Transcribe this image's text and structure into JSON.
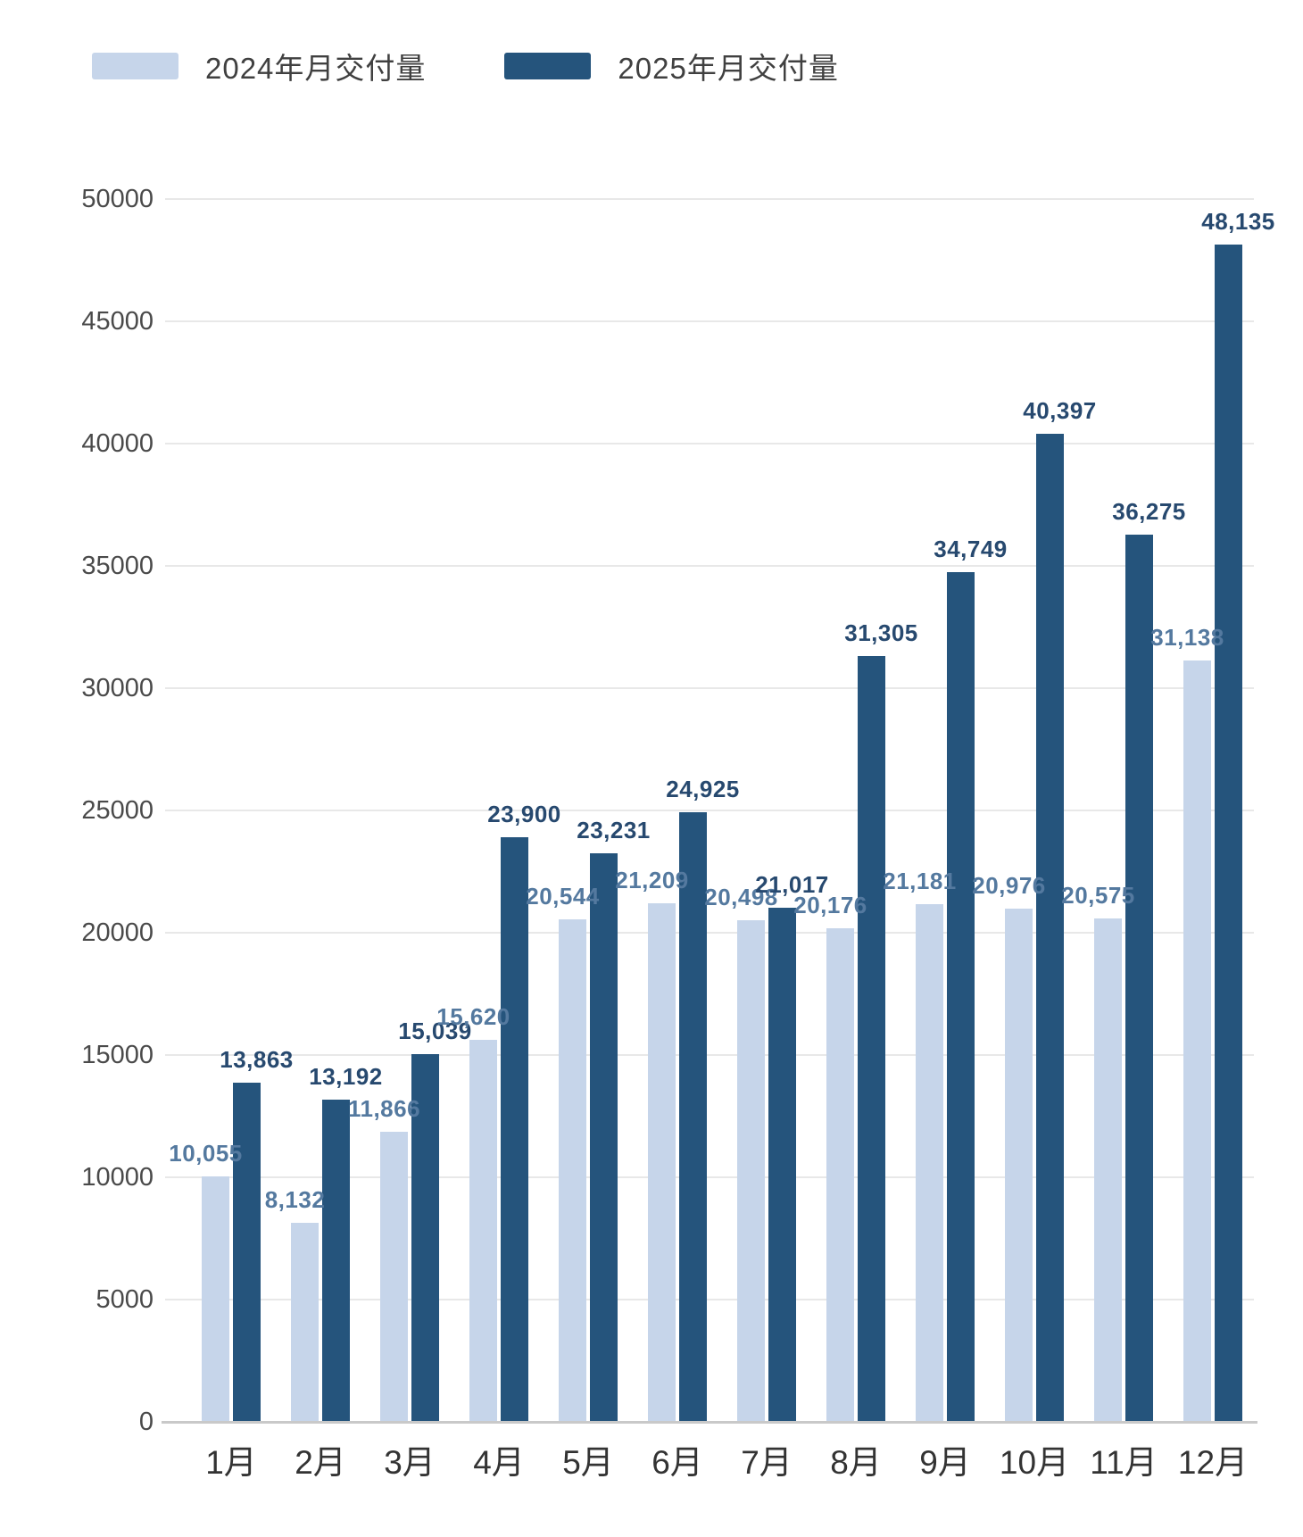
{
  "chart_data": {
    "type": "bar",
    "title": "",
    "xlabel": "",
    "ylabel": "",
    "categories": [
      "1月",
      "2月",
      "3月",
      "4月",
      "5月",
      "6月",
      "7月",
      "8月",
      "9月",
      "10月",
      "11月",
      "12月"
    ],
    "series": [
      {
        "name": "2024年月交付量",
        "color": "#c6d5ea",
        "label_color": "#54799f",
        "values": [
          10055,
          8132,
          11866,
          15620,
          20544,
          21209,
          20498,
          20176,
          21181,
          20976,
          20575,
          31138
        ],
        "value_labels": [
          "10,055",
          "8,132",
          "11,866",
          "15,620",
          "20,544",
          "21,209",
          "20,498",
          "20,176",
          "21,181",
          "20,976",
          "20,575",
          "31,138"
        ]
      },
      {
        "name": "2025年月交付量",
        "color": "#25547c",
        "label_color": "#27496f",
        "values": [
          13863,
          13192,
          15039,
          23900,
          23231,
          24925,
          21017,
          31305,
          34749,
          40397,
          36275,
          48135
        ],
        "value_labels": [
          "13,863",
          "13,192",
          "15,039",
          "23,900",
          "23,231",
          "24,925",
          "21,017",
          "31,305",
          "34,749",
          "40,397",
          "36,275",
          "48,135"
        ]
      }
    ],
    "ylim": [
      0,
      50000
    ],
    "ytick_step": 5000,
    "yticks": [
      "0",
      "5000",
      "10000",
      "15000",
      "20000",
      "25000",
      "30000",
      "35000",
      "40000",
      "45000",
      "50000"
    ],
    "grid": true,
    "legend_position": "top-left",
    "background_color": "#ffffff",
    "gridline_color": "#e8e8e8",
    "axis_line_color": "#c9c9c9",
    "ytick_color": "#4a4a4a",
    "xtick_color": "#333333"
  }
}
